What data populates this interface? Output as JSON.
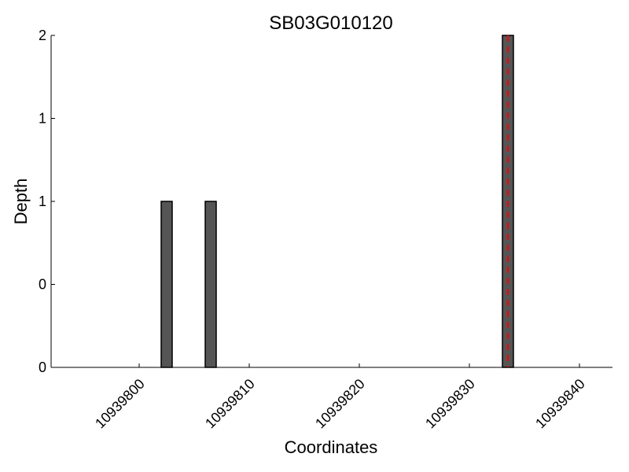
{
  "chart_data": {
    "type": "bar",
    "title": "SB03G010120",
    "xlabel": "Coordinates",
    "ylabel": "Depth",
    "xlim": [
      10939792,
      10939843
    ],
    "ylim": [
      0,
      2
    ],
    "xticks": [
      10939800,
      10939810,
      10939820,
      10939830,
      10939840
    ],
    "xtick_labels": [
      "10939800",
      "10939810",
      "10939820",
      "10939830",
      "10939840"
    ],
    "yticks": [
      0,
      0.5,
      1,
      1.5,
      2
    ],
    "ytick_labels": [
      "0",
      "0",
      "1",
      "1",
      "2"
    ],
    "bars": [
      {
        "x": 10939802,
        "width": 1,
        "value": 1
      },
      {
        "x": 10939806,
        "width": 1,
        "value": 1
      },
      {
        "x": 10939833,
        "width": 1,
        "value": 2
      }
    ],
    "vline": {
      "x": 10939833.5,
      "style": "dashed",
      "color": "#ff0000"
    },
    "bar_color": "#555555",
    "bar_edge_color": "#000000",
    "grid": false
  }
}
